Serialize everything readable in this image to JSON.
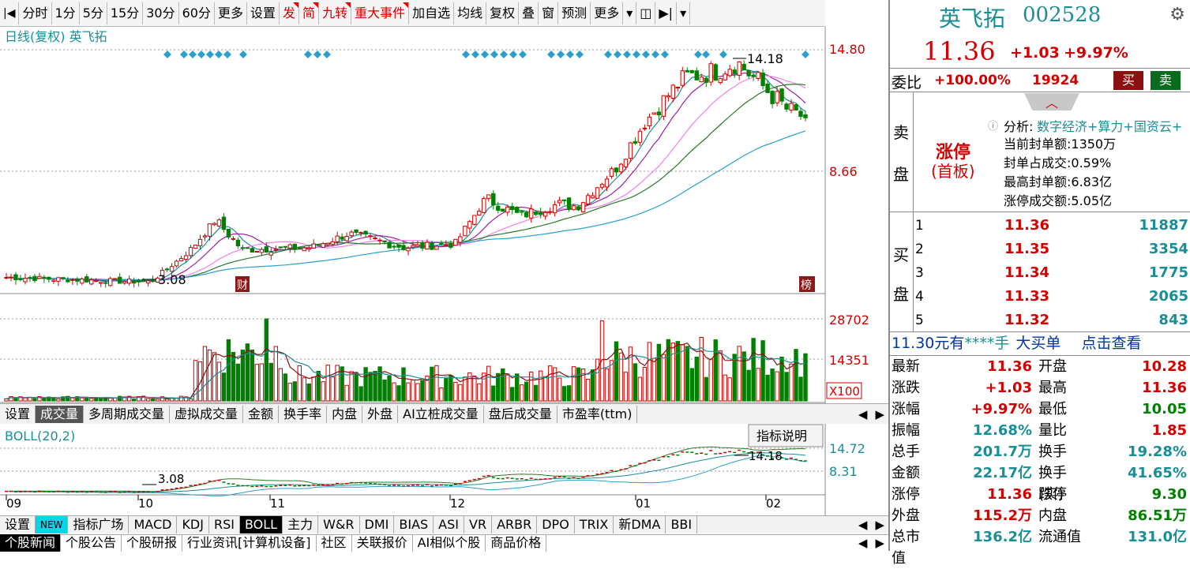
{
  "toolbar": {
    "items": [
      {
        "label": "分时",
        "red": false
      },
      {
        "label": "1分",
        "red": false
      },
      {
        "label": "5分",
        "red": false
      },
      {
        "label": "15分",
        "red": false
      },
      {
        "label": "30分",
        "red": false
      },
      {
        "label": "60分",
        "red": false
      },
      {
        "label": "更多",
        "red": false
      },
      {
        "label": "设置",
        "red": false
      },
      {
        "label": "发",
        "red": true
      },
      {
        "label": "简",
        "red": true
      },
      {
        "label": "九转",
        "red": true
      },
      {
        "label": "重大事件",
        "red": true
      },
      {
        "label": "加自选",
        "red": false
      },
      {
        "label": "均线",
        "red": false
      },
      {
        "label": "复权",
        "red": false
      },
      {
        "label": "叠",
        "red": false
      },
      {
        "label": "窗",
        "red": false
      },
      {
        "label": "预测",
        "red": false
      },
      {
        "label": "更多",
        "red": false
      }
    ]
  },
  "chart": {
    "title": "日线(复权) 英飞拓",
    "price_ticks": [
      "14.80",
      "8.66"
    ],
    "high_label": "14.18",
    "low_label": "3.08",
    "cai_label": "财",
    "bang_label": "榜",
    "vol_ticks": [
      "28702",
      "14351"
    ],
    "vol_unit": "X100",
    "boll_title": "BOLL(20,2)",
    "boll_ticks": [
      "14.72",
      "8.31"
    ],
    "boll_high": "14.18",
    "boll_low": "3.08",
    "indicator_btn": "指标说明",
    "months": [
      "09",
      "10",
      "11",
      "12",
      "01",
      "02"
    ]
  },
  "vol_tabs": [
    "设置",
    "成交量",
    "多周期成交量",
    "虚拟成交量",
    "金额",
    "换手率",
    "内盘",
    "外盘",
    "AI立桩成交量",
    "盘后成交量",
    "市盈率(ttm)"
  ],
  "ind_tabs": [
    "设置",
    "NEW",
    "指标广场",
    "MACD",
    "KDJ",
    "RSI",
    "BOLL",
    "主力",
    "W&R",
    "DMI",
    "BIAS",
    "ASI",
    "VR",
    "ARBR",
    "DPO",
    "TRIX",
    "新DMA",
    "BBI"
  ],
  "news_tabs": [
    "个股新闻",
    "个股公告",
    "个股研报",
    "行业资讯[计算机设备]",
    "社区",
    "关联报价",
    "AI相似个股",
    "商品价格"
  ],
  "stock": {
    "name": "英飞拓",
    "code": "002528",
    "price": "11.36",
    "change": "+1.03",
    "pct": "+9.97%",
    "weibi_label": "委比",
    "weibi": "+100.00%",
    "weicha": "19924",
    "buy": "买",
    "sell": "卖"
  },
  "sell_label": [
    "卖",
    "盘"
  ],
  "limit": {
    "tag": "涨停",
    "sub": "(首板)",
    "analysis_label": "分析:",
    "analysis": "数字经济+算力+国资云+",
    "lines": [
      "当前封单额:1350万",
      "封单占成交:0.59%",
      "最高封单额:6.83亿",
      "涨停成交额:5.05亿"
    ]
  },
  "buy_label": [
    "买",
    "盘"
  ],
  "bids": [
    {
      "lv": "1",
      "p": "11.36",
      "v": "11887"
    },
    {
      "lv": "2",
      "p": "11.35",
      "v": "3354"
    },
    {
      "lv": "3",
      "p": "11.34",
      "v": "1775"
    },
    {
      "lv": "4",
      "p": "11.33",
      "v": "2065"
    },
    {
      "lv": "5",
      "p": "11.32",
      "v": "843"
    }
  ],
  "bigorder": {
    "a": "11.30元有",
    "b": "****手",
    "c": "大买单",
    "d": "点击查看"
  },
  "quote": [
    {
      "l": "最新",
      "v": "11.36",
      "vc": "red",
      "l2": "开盘",
      "v2": "10.28",
      "v2c": "red"
    },
    {
      "l": "涨跌",
      "v": "+1.03",
      "vc": "red",
      "l2": "最高",
      "v2": "11.36",
      "v2c": "red"
    },
    {
      "l": "涨幅",
      "v": "+9.97%",
      "vc": "red",
      "l2": "最低",
      "v2": "10.05",
      "v2c": "green"
    },
    {
      "l": "振幅",
      "v": "12.68%",
      "vc": "teal",
      "l2": "量比",
      "v2": "1.85",
      "v2c": "red"
    },
    {
      "l": "总手",
      "v": "201.7万",
      "vc": "teal",
      "l2": "换手",
      "v2": "19.28%",
      "v2c": "teal"
    },
    {
      "l": "金额",
      "v": "22.17亿",
      "vc": "teal",
      "l2": "换手(实)",
      "v2": "41.65%",
      "v2c": "teal"
    },
    {
      "l": "涨停",
      "v": "11.36",
      "vc": "red",
      "l2": "跌停",
      "v2": "9.30",
      "v2c": "green"
    },
    {
      "l": "外盘",
      "v": "115.2万",
      "vc": "red",
      "l2": "内盘",
      "v2": "86.51万",
      "v2c": "green"
    },
    {
      "l": "总市值",
      "v": "136.2亿",
      "vc": "teal",
      "l2": "流通值",
      "v2": "131.0亿",
      "v2c": "teal"
    }
  ],
  "colors": {
    "up": "#d20000",
    "down": "#008000",
    "teal": "#1a8e96",
    "diamond": "#2a9fd0"
  }
}
